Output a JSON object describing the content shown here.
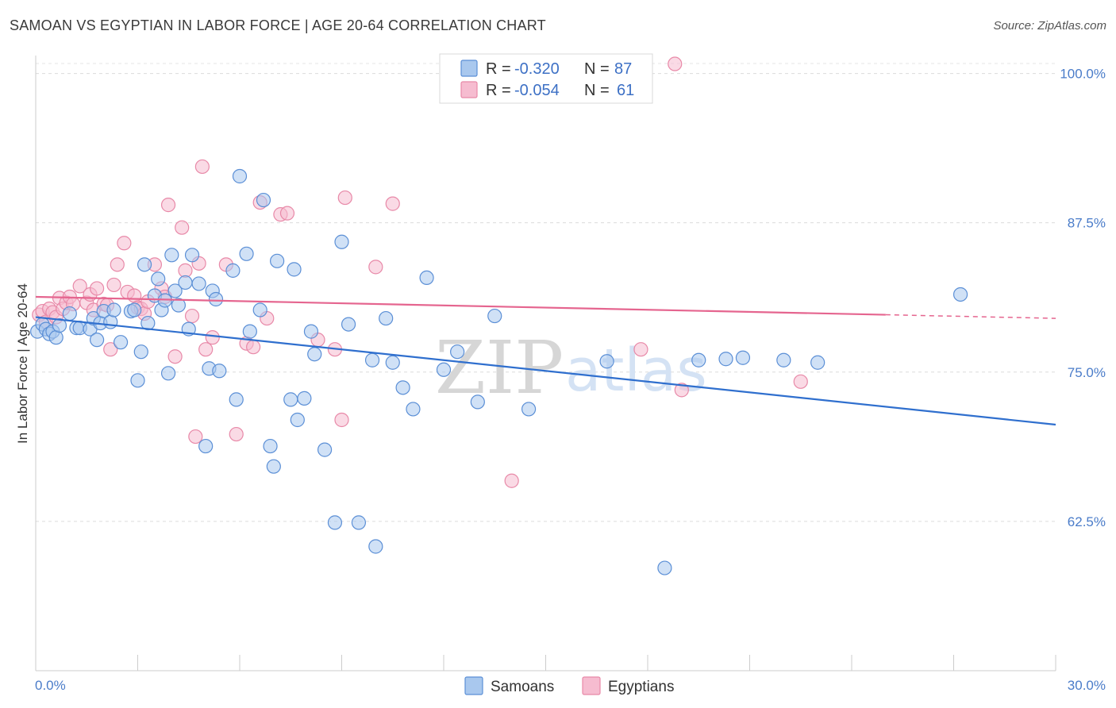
{
  "header": {
    "title": "SAMOAN VS EGYPTIAN IN LABOR FORCE | AGE 20-64 CORRELATION CHART",
    "source": "Source: ZipAtlas.com"
  },
  "watermark": {
    "zip": "ZIP",
    "atlas": "atlas"
  },
  "colors": {
    "samoans_fill": "#a9c8ee",
    "samoans_stroke": "#5b8fd6",
    "samoans_line": "#2f6fce",
    "egyptians_fill": "#f6bcd0",
    "egyptians_stroke": "#e889a8",
    "egyptians_line": "#e5658f",
    "tick_label": "#4a7cc9"
  },
  "legend": {
    "rows": [
      {
        "r_label": "R =",
        "r_value": "-0.320",
        "n_label": "N =",
        "n_value": "87"
      },
      {
        "r_label": "R =",
        "r_value": "-0.054",
        "n_label": "N =",
        "n_value": "61"
      }
    ]
  },
  "bottom_legend": [
    "Samoans",
    "Egyptians"
  ],
  "chart_data": {
    "type": "scatter",
    "title": "SAMOAN VS EGYPTIAN IN LABOR FORCE | AGE 20-64 CORRELATION CHART",
    "xlabel": "",
    "ylabel": "In Labor Force | Age 20-64",
    "xlim": [
      0,
      30
    ],
    "ylim": [
      50,
      101.5
    ],
    "x_tick_labels": [
      "0.0%",
      "30.0%"
    ],
    "y_ticks": [
      62.5,
      75.0,
      87.5,
      100.0
    ],
    "y_tick_labels": [
      "62.5%",
      "75.0%",
      "87.5%",
      "100.0%"
    ],
    "grid": true,
    "legend_position": "top-center",
    "series": [
      {
        "name": "Samoans",
        "trend": {
          "x": [
            0,
            30
          ],
          "y": [
            79.6,
            70.6
          ]
        },
        "points": [
          [
            0.05,
            78.4
          ],
          [
            0.2,
            79.0
          ],
          [
            0.3,
            78.6
          ],
          [
            0.4,
            78.2
          ],
          [
            0.5,
            78.4
          ],
          [
            0.6,
            77.9
          ],
          [
            0.7,
            78.9
          ],
          [
            1.0,
            79.9
          ],
          [
            1.2,
            78.7
          ],
          [
            1.3,
            78.7
          ],
          [
            1.6,
            78.6
          ],
          [
            1.7,
            79.5
          ],
          [
            1.8,
            77.7
          ],
          [
            1.9,
            79.1
          ],
          [
            2.0,
            80.1
          ],
          [
            2.2,
            79.2
          ],
          [
            2.3,
            80.2
          ],
          [
            2.5,
            77.5
          ],
          [
            2.8,
            80.1
          ],
          [
            2.9,
            80.2
          ],
          [
            3.0,
            74.3
          ],
          [
            3.1,
            76.7
          ],
          [
            3.2,
            84.0
          ],
          [
            3.3,
            79.1
          ],
          [
            3.5,
            81.4
          ],
          [
            3.6,
            82.8
          ],
          [
            3.7,
            80.2
          ],
          [
            3.8,
            81.0
          ],
          [
            3.9,
            74.9
          ],
          [
            4.0,
            84.8
          ],
          [
            4.1,
            81.8
          ],
          [
            4.2,
            80.6
          ],
          [
            4.4,
            82.5
          ],
          [
            4.5,
            78.6
          ],
          [
            4.6,
            84.8
          ],
          [
            4.8,
            82.4
          ],
          [
            5.0,
            68.8
          ],
          [
            5.1,
            75.3
          ],
          [
            5.2,
            81.8
          ],
          [
            5.3,
            81.1
          ],
          [
            5.4,
            75.1
          ],
          [
            5.8,
            83.5
          ],
          [
            5.9,
            72.7
          ],
          [
            6.0,
            91.4
          ],
          [
            6.2,
            84.9
          ],
          [
            6.3,
            78.4
          ],
          [
            6.6,
            80.2
          ],
          [
            6.7,
            89.4
          ],
          [
            6.9,
            68.8
          ],
          [
            7.0,
            67.1
          ],
          [
            7.1,
            84.3
          ],
          [
            7.5,
            72.7
          ],
          [
            7.6,
            83.6
          ],
          [
            7.7,
            71.0
          ],
          [
            7.9,
            72.8
          ],
          [
            8.1,
            78.4
          ],
          [
            8.2,
            76.5
          ],
          [
            8.5,
            68.5
          ],
          [
            8.8,
            62.4
          ],
          [
            9.0,
            85.9
          ],
          [
            9.2,
            79.0
          ],
          [
            9.5,
            62.4
          ],
          [
            9.9,
            76.0
          ],
          [
            10.0,
            60.4
          ],
          [
            10.3,
            79.5
          ],
          [
            10.5,
            75.8
          ],
          [
            10.8,
            73.7
          ],
          [
            11.1,
            71.9
          ],
          [
            11.5,
            82.9
          ],
          [
            12.0,
            75.2
          ],
          [
            12.4,
            76.7
          ],
          [
            13.0,
            72.5
          ],
          [
            13.5,
            79.7
          ],
          [
            14.5,
            71.9
          ],
          [
            16.8,
            75.9
          ],
          [
            18.5,
            58.6
          ],
          [
            19.5,
            76.0
          ],
          [
            20.3,
            76.1
          ],
          [
            20.8,
            76.2
          ],
          [
            22.0,
            76.0
          ],
          [
            23.0,
            75.8
          ],
          [
            27.2,
            81.5
          ]
        ]
      },
      {
        "name": "Egyptians",
        "trend": {
          "x": [
            0,
            25
          ],
          "y": [
            81.3,
            79.8
          ]
        },
        "trend_dashed": {
          "x": [
            25,
            30
          ],
          "y": [
            79.8,
            79.5
          ]
        },
        "points": [
          [
            0.1,
            79.8
          ],
          [
            0.2,
            80.1
          ],
          [
            0.3,
            79.2
          ],
          [
            0.4,
            80.3
          ],
          [
            0.5,
            80.0
          ],
          [
            0.6,
            79.6
          ],
          [
            0.7,
            81.2
          ],
          [
            0.8,
            80.3
          ],
          [
            0.9,
            80.8
          ],
          [
            1.0,
            81.3
          ],
          [
            1.1,
            80.7
          ],
          [
            1.3,
            82.2
          ],
          [
            1.5,
            80.8
          ],
          [
            1.6,
            81.5
          ],
          [
            1.7,
            80.2
          ],
          [
            1.8,
            82.0
          ],
          [
            2.0,
            80.7
          ],
          [
            2.1,
            80.6
          ],
          [
            2.2,
            76.9
          ],
          [
            2.3,
            82.3
          ],
          [
            2.4,
            84.0
          ],
          [
            2.6,
            85.8
          ],
          [
            2.7,
            81.7
          ],
          [
            2.9,
            81.4
          ],
          [
            3.0,
            80.4
          ],
          [
            3.1,
            80.3
          ],
          [
            3.2,
            79.9
          ],
          [
            3.3,
            80.9
          ],
          [
            3.5,
            84.0
          ],
          [
            3.7,
            82.0
          ],
          [
            3.8,
            81.3
          ],
          [
            3.9,
            89.0
          ],
          [
            4.1,
            76.3
          ],
          [
            4.3,
            87.1
          ],
          [
            4.4,
            83.5
          ],
          [
            4.6,
            79.7
          ],
          [
            4.7,
            69.6
          ],
          [
            4.8,
            84.1
          ],
          [
            4.9,
            92.2
          ],
          [
            5.0,
            76.9
          ],
          [
            5.2,
            77.9
          ],
          [
            5.6,
            84.0
          ],
          [
            5.9,
            69.8
          ],
          [
            6.2,
            77.4
          ],
          [
            6.4,
            77.1
          ],
          [
            6.6,
            89.2
          ],
          [
            6.8,
            79.5
          ],
          [
            7.2,
            88.2
          ],
          [
            7.4,
            88.3
          ],
          [
            8.3,
            77.7
          ],
          [
            8.8,
            76.9
          ],
          [
            9.0,
            71.0
          ],
          [
            9.1,
            89.6
          ],
          [
            10.0,
            83.8
          ],
          [
            10.5,
            89.1
          ],
          [
            14.0,
            65.9
          ],
          [
            17.8,
            76.9
          ],
          [
            18.8,
            100.8
          ],
          [
            19.0,
            73.5
          ],
          [
            22.5,
            74.2
          ]
        ]
      }
    ]
  }
}
